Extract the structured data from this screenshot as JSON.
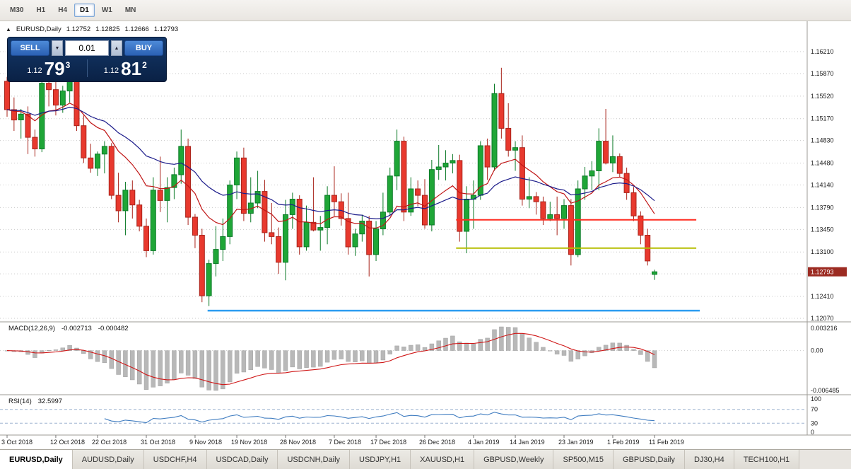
{
  "toolbar": {
    "timeframes": [
      {
        "label": "M30",
        "active": false
      },
      {
        "label": "H1",
        "active": false
      },
      {
        "label": "H4",
        "active": false
      },
      {
        "label": "D1",
        "active": true
      },
      {
        "label": "W1",
        "active": false
      },
      {
        "label": "MN",
        "active": false
      }
    ]
  },
  "chart_header": {
    "symbol": "EURUSD,Daily",
    "open": "1.12752",
    "high": "1.12825",
    "low": "1.12666",
    "close": "1.12793"
  },
  "trade_panel": {
    "sell_label": "SELL",
    "buy_label": "BUY",
    "lot": "0.01",
    "sell_price": {
      "prefix": "1.12",
      "big": "79",
      "pip": "3"
    },
    "buy_price": {
      "prefix": "1.12",
      "big": "81",
      "pip": "2"
    }
  },
  "icons": {
    "collapse_triangle": "▲",
    "lot_down": "▼",
    "lot_up": "▲"
  },
  "price_axis": {
    "labels": [
      "1.16210",
      "1.15870",
      "1.15520",
      "1.15170",
      "1.14830",
      "1.14480",
      "1.14140",
      "1.13790",
      "1.13450",
      "1.13100",
      "1.12760",
      "1.12410",
      "1.12070"
    ],
    "current_badge": "1.12793"
  },
  "indicators": {
    "macd": {
      "name": "MACD(12,26,9)",
      "value_main": "-0.002713",
      "value_signal": "-0.000482",
      "fast": 12,
      "slow": 26,
      "signal": 9,
      "axis_labels": [
        "0.003216",
        "0.00",
        "-0.006485"
      ]
    },
    "rsi": {
      "name": "RSI(14)",
      "value": "32.5997",
      "period": 14,
      "levels": [
        70,
        30
      ],
      "axis_labels": [
        "100",
        "70",
        "30",
        "0"
      ]
    }
  },
  "chart_data": {
    "type": "candlestick",
    "symbol": "EURUSD",
    "timeframe": "Daily",
    "moving_averages": [
      {
        "period": 12,
        "color": "#c01616"
      },
      {
        "period": 26,
        "color": "#1b1b8a"
      }
    ],
    "hlines": [
      {
        "price": 1.136,
        "color": "#ff2d21",
        "from_index": 64.5,
        "to_index": 99.0,
        "width": 2
      },
      {
        "price": 1.1316,
        "color": "#b5bd00",
        "from_index": 64.5,
        "to_index": 99.0,
        "width": 2
      },
      {
        "price": 1.1219,
        "color": "#2e9df0",
        "from_index": 28.8,
        "to_index": 99.5,
        "width": 2.5
      }
    ],
    "date_ticks": [
      {
        "label": "3 Oct 2018",
        "index": 0
      },
      {
        "label": "12 Oct 2018",
        "index": 7
      },
      {
        "label": "22 Oct 2018",
        "index": 13
      },
      {
        "label": "31 Oct 2018",
        "index": 20
      },
      {
        "label": "9 Nov 2018",
        "index": 27
      },
      {
        "label": "19 Nov 2018",
        "index": 33
      },
      {
        "label": "28 Nov 2018",
        "index": 40
      },
      {
        "label": "7 Dec 2018",
        "index": 47
      },
      {
        "label": "17 Dec 2018",
        "index": 53
      },
      {
        "label": "26 Dec 2018",
        "index": 60
      },
      {
        "label": "4 Jan 2019",
        "index": 67
      },
      {
        "label": "14 Jan 2019",
        "index": 73
      },
      {
        "label": "23 Jan 2019",
        "index": 80
      },
      {
        "label": "1 Feb 2019",
        "index": 87
      },
      {
        "label": "11 Feb 2019",
        "index": 93
      }
    ],
    "candles": [
      [
        "2018-10-03",
        1.1575,
        1.1582,
        1.152,
        1.1531
      ],
      [
        "2018-10-04",
        1.1531,
        1.155,
        1.1498,
        1.1515
      ],
      [
        "2018-10-05",
        1.1515,
        1.1532,
        1.1486,
        1.1524
      ],
      [
        "2018-10-08",
        1.1524,
        1.1536,
        1.1462,
        1.1488
      ],
      [
        "2018-10-09",
        1.1488,
        1.15,
        1.1458,
        1.147
      ],
      [
        "2018-10-10",
        1.147,
        1.158,
        1.1465,
        1.1572
      ],
      [
        "2018-10-11",
        1.1572,
        1.1596,
        1.1536,
        1.1562
      ],
      [
        "2018-10-12",
        1.1562,
        1.1578,
        1.1522,
        1.1538
      ],
      [
        "2018-10-15",
        1.1538,
        1.1568,
        1.1526,
        1.156
      ],
      [
        "2018-10-16",
        1.156,
        1.1582,
        1.1542,
        1.1576
      ],
      [
        "2018-10-17",
        1.1576,
        1.1581,
        1.1498,
        1.1506
      ],
      [
        "2018-10-18",
        1.1506,
        1.1522,
        1.1448,
        1.1456
      ],
      [
        "2018-10-19",
        1.1456,
        1.1478,
        1.1433,
        1.144
      ],
      [
        "2018-10-22",
        1.144,
        1.1466,
        1.1428,
        1.1462
      ],
      [
        "2018-10-23",
        1.1462,
        1.1482,
        1.1432,
        1.1474
      ],
      [
        "2018-10-24",
        1.1474,
        1.1479,
        1.1392,
        1.1398
      ],
      [
        "2018-10-25",
        1.1398,
        1.1433,
        1.1356,
        1.1374
      ],
      [
        "2018-10-26",
        1.1374,
        1.1419,
        1.1336,
        1.1406
      ],
      [
        "2018-10-29",
        1.1406,
        1.1421,
        1.1362,
        1.1383
      ],
      [
        "2018-10-30",
        1.1383,
        1.1391,
        1.1342,
        1.135
      ],
      [
        "2018-10-31",
        1.135,
        1.1362,
        1.1302,
        1.1312
      ],
      [
        "2018-11-01",
        1.1312,
        1.1426,
        1.1306,
        1.1406
      ],
      [
        "2018-11-02",
        1.1406,
        1.1458,
        1.1372,
        1.139
      ],
      [
        "2018-11-05",
        1.139,
        1.1426,
        1.1356,
        1.141
      ],
      [
        "2018-11-06",
        1.141,
        1.1441,
        1.1392,
        1.143
      ],
      [
        "2018-11-07",
        1.143,
        1.15,
        1.1416,
        1.1474
      ],
      [
        "2018-11-08",
        1.1474,
        1.1486,
        1.1352,
        1.1364
      ],
      [
        "2018-11-09",
        1.1364,
        1.1369,
        1.1316,
        1.1336
      ],
      [
        "2018-11-12",
        1.1336,
        1.1346,
        1.1232,
        1.1242
      ],
      [
        "2018-11-13",
        1.1242,
        1.1298,
        1.1226,
        1.1292
      ],
      [
        "2018-11-14",
        1.1292,
        1.135,
        1.1272,
        1.1314
      ],
      [
        "2018-11-15",
        1.1314,
        1.1362,
        1.1296,
        1.1334
      ],
      [
        "2018-11-16",
        1.1334,
        1.1421,
        1.1322,
        1.1414
      ],
      [
        "2018-11-19",
        1.1414,
        1.1466,
        1.1392,
        1.1456
      ],
      [
        "2018-11-20",
        1.1456,
        1.1472,
        1.1358,
        1.137
      ],
      [
        "2018-11-21",
        1.137,
        1.1426,
        1.1356,
        1.1386
      ],
      [
        "2018-11-22",
        1.1386,
        1.1436,
        1.1378,
        1.1404
      ],
      [
        "2018-11-23",
        1.1404,
        1.1422,
        1.1326,
        1.134
      ],
      [
        "2018-11-26",
        1.134,
        1.1386,
        1.1322,
        1.1334
      ],
      [
        "2018-11-27",
        1.1334,
        1.1348,
        1.1276,
        1.1294
      ],
      [
        "2018-11-28",
        1.1294,
        1.1391,
        1.1266,
        1.1368
      ],
      [
        "2018-11-29",
        1.1368,
        1.1402,
        1.1346,
        1.1392
      ],
      [
        "2018-11-30",
        1.1392,
        1.1398,
        1.1306,
        1.1318
      ],
      [
        "2018-12-03",
        1.1318,
        1.1382,
        1.1312,
        1.1356
      ],
      [
        "2018-12-04",
        1.1356,
        1.1426,
        1.1342,
        1.1344
      ],
      [
        "2018-12-05",
        1.1344,
        1.1366,
        1.1312,
        1.1348
      ],
      [
        "2018-12-06",
        1.1348,
        1.1412,
        1.1322,
        1.1398
      ],
      [
        "2018-12-07",
        1.1398,
        1.1443,
        1.1366,
        1.1388
      ],
      [
        "2018-12-10",
        1.1388,
        1.1401,
        1.1351,
        1.1362
      ],
      [
        "2018-12-11",
        1.1362,
        1.1402,
        1.1306,
        1.1318
      ],
      [
        "2018-12-12",
        1.1318,
        1.1346,
        1.1304,
        1.1338
      ],
      [
        "2018-12-13",
        1.1338,
        1.1368,
        1.1326,
        1.1358
      ],
      [
        "2018-12-14",
        1.1358,
        1.1366,
        1.1272,
        1.1306
      ],
      [
        "2018-12-17",
        1.1306,
        1.1358,
        1.1296,
        1.1346
      ],
      [
        "2018-12-18",
        1.1346,
        1.1402,
        1.1336,
        1.1372
      ],
      [
        "2018-12-19",
        1.1372,
        1.1441,
        1.1366,
        1.1428
      ],
      [
        "2018-12-20",
        1.1428,
        1.15,
        1.1406,
        1.1482
      ],
      [
        "2018-12-21",
        1.1482,
        1.1489,
        1.1358,
        1.1372
      ],
      [
        "2018-12-24",
        1.1372,
        1.1426,
        1.1366,
        1.1408
      ],
      [
        "2018-12-25",
        1.1408,
        1.1421,
        1.1381,
        1.1398
      ],
      [
        "2018-12-26",
        1.1398,
        1.1423,
        1.1346,
        1.1352
      ],
      [
        "2018-12-27",
        1.1352,
        1.1453,
        1.1342,
        1.1438
      ],
      [
        "2018-12-28",
        1.1438,
        1.1476,
        1.1422,
        1.1442
      ],
      [
        "2018-12-31",
        1.1442,
        1.1468,
        1.1421,
        1.1448
      ],
      [
        "2019-01-01",
        1.1448,
        1.1462,
        1.1432,
        1.1452
      ],
      [
        "2019-01-02",
        1.1452,
        1.1461,
        1.1326,
        1.1342
      ],
      [
        "2019-01-03",
        1.1342,
        1.1412,
        1.1308,
        1.1392
      ],
      [
        "2019-01-04",
        1.1392,
        1.1421,
        1.1346,
        1.1398
      ],
      [
        "2019-01-07",
        1.1398,
        1.1482,
        1.1391,
        1.1475
      ],
      [
        "2019-01-08",
        1.1475,
        1.1486,
        1.1422,
        1.1442
      ],
      [
        "2019-01-09",
        1.1442,
        1.1571,
        1.1436,
        1.1556
      ],
      [
        "2019-01-10",
        1.1556,
        1.1596,
        1.1486,
        1.1502
      ],
      [
        "2019-01-11",
        1.1502,
        1.1541,
        1.1458,
        1.1468
      ],
      [
        "2019-01-14",
        1.1468,
        1.1482,
        1.1436,
        1.1472
      ],
      [
        "2019-01-15",
        1.1472,
        1.1491,
        1.1382,
        1.1392
      ],
      [
        "2019-01-16",
        1.1392,
        1.1426,
        1.1378,
        1.1396
      ],
      [
        "2019-01-17",
        1.1396,
        1.1403,
        1.1368,
        1.1388
      ],
      [
        "2019-01-18",
        1.1388,
        1.1396,
        1.1352,
        1.1362
      ],
      [
        "2019-01-21",
        1.1362,
        1.1388,
        1.1358,
        1.1368
      ],
      [
        "2019-01-22",
        1.1368,
        1.1396,
        1.1336,
        1.1362
      ],
      [
        "2019-01-23",
        1.1362,
        1.1392,
        1.1346,
        1.1382
      ],
      [
        "2019-01-24",
        1.1382,
        1.1392,
        1.1289,
        1.1306
      ],
      [
        "2019-01-25",
        1.1306,
        1.1421,
        1.1302,
        1.1408
      ],
      [
        "2019-01-28",
        1.1408,
        1.1442,
        1.1391,
        1.1428
      ],
      [
        "2019-01-29",
        1.1428,
        1.1451,
        1.1406,
        1.1436
      ],
      [
        "2019-01-30",
        1.1436,
        1.1502,
        1.1406,
        1.1482
      ],
      [
        "2019-01-31",
        1.1482,
        1.1532,
        1.1446,
        1.1448
      ],
      [
        "2019-02-01",
        1.1448,
        1.1491,
        1.1434,
        1.1458
      ],
      [
        "2019-02-04",
        1.1458,
        1.1463,
        1.1426,
        1.1432
      ],
      [
        "2019-02-05",
        1.1432,
        1.1441,
        1.1391,
        1.1402
      ],
      [
        "2019-02-06",
        1.1402,
        1.1411,
        1.1358,
        1.1366
      ],
      [
        "2019-02-07",
        1.1366,
        1.1373,
        1.1322,
        1.1336
      ],
      [
        "2019-02-08",
        1.1336,
        1.1346,
        1.1289,
        1.1296
      ],
      [
        "2019-02-11",
        1.12752,
        1.12825,
        1.12666,
        1.12793
      ]
    ]
  },
  "tabs": [
    {
      "label": "EURUSD,Daily",
      "active": true
    },
    {
      "label": "AUDUSD,Daily",
      "active": false
    },
    {
      "label": "USDCHF,H4",
      "active": false
    },
    {
      "label": "USDCAD,Daily",
      "active": false
    },
    {
      "label": "USDCNH,Daily",
      "active": false
    },
    {
      "label": "USDJPY,H1",
      "active": false
    },
    {
      "label": "XAUUSD,H1",
      "active": false
    },
    {
      "label": "GBPUSD,Weekly",
      "active": false
    },
    {
      "label": "SP500,M15",
      "active": false
    },
    {
      "label": "GBPUSD,Daily",
      "active": false
    },
    {
      "label": "DJ30,H4",
      "active": false
    },
    {
      "label": "TECH100,H1",
      "active": false
    }
  ],
  "colors": {
    "up_fill": "#1fa637",
    "up_border": "#0b7a27",
    "down_fill": "#e8392e",
    "down_border": "#a8231a",
    "grid": "#c9c9c9",
    "separator": "#9e9b96",
    "macd_bar": "#b8b8b8",
    "macd_signal": "#cf1717",
    "rsi_line": "#3f7cc0",
    "rsi_level": "#9db4d0",
    "badge_bg": "#9c2b22"
  }
}
